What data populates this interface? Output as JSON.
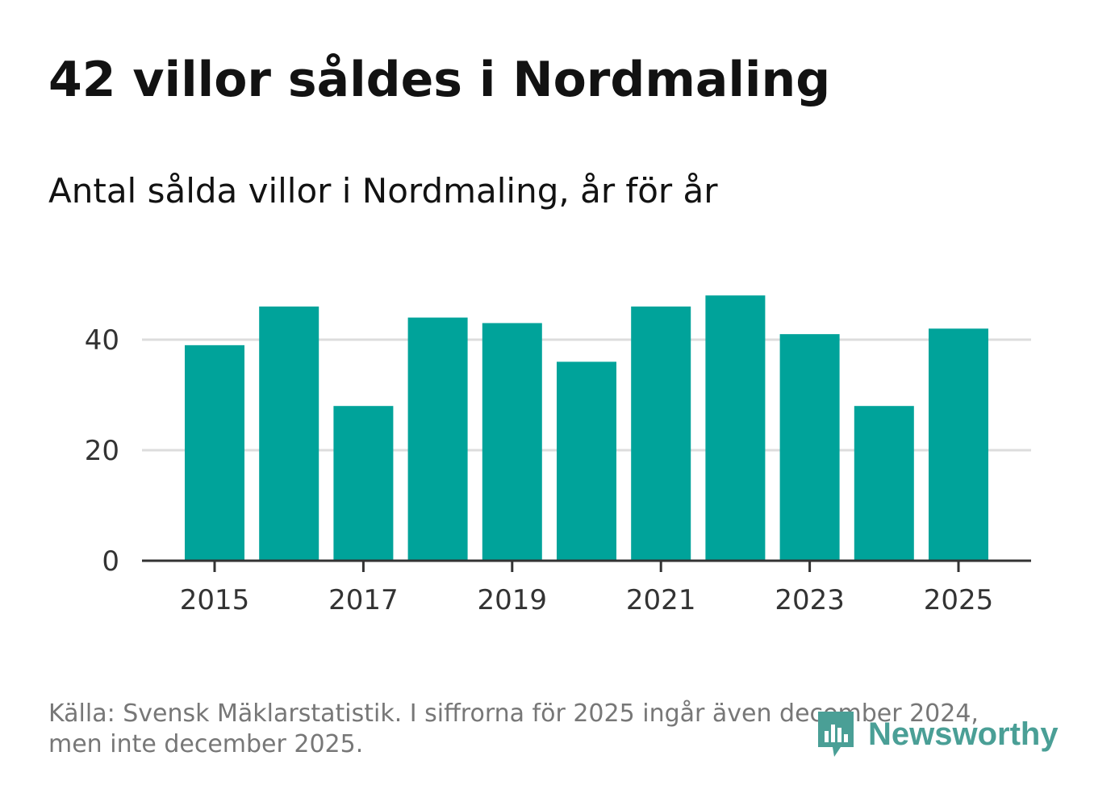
{
  "colors": {
    "bar": "#00a39a",
    "grid": "#dddddd",
    "axis": "#333333",
    "title": "#121212",
    "note": "#777777",
    "logo": "#4a9f96"
  },
  "chart_data": {
    "type": "bar",
    "title": "42 villor såldes i Nordmaling",
    "subtitle": "Antal sålda villor i Nordmaling, år för år",
    "xlabel": "",
    "ylabel": "",
    "x": [
      2015,
      2016,
      2017,
      2018,
      2019,
      2020,
      2021,
      2022,
      2023,
      2024,
      2025
    ],
    "values": [
      39,
      46,
      28,
      44,
      43,
      36,
      46,
      48,
      41,
      28,
      42
    ],
    "ylim": [
      0,
      50
    ],
    "yticks": [
      0,
      20,
      40
    ],
    "xticks": [
      2015,
      2017,
      2019,
      2021,
      2023,
      2025
    ],
    "grid": true,
    "legend": "none"
  },
  "footnote": {
    "line1": "Källa: Svensk Mäklarstatistik. I siffrorna för 2025 ingår även december 2024,",
    "line2": "men inte december 2025."
  },
  "logo": {
    "icon": "newsworthy-logo-icon",
    "text": "Newsworthy"
  }
}
